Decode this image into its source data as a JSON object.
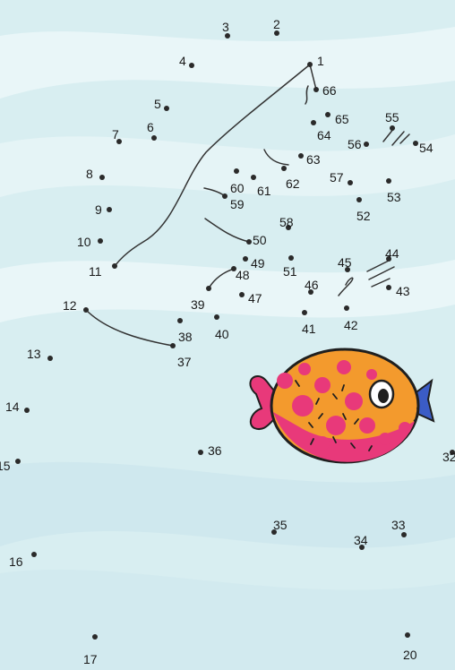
{
  "puzzle": {
    "colors": {
      "water_light": "#e6f4f6",
      "water_mid": "#cfe8ed",
      "water_band": "#bfe0e7",
      "line": "#333333",
      "fish_orange": "#f39a2d",
      "fish_pink": "#e8397a",
      "fish_outline": "#1f1f1f",
      "fish_tail_blue": "#3b5cc6"
    },
    "dots": [
      {
        "n": "1"
      },
      {
        "n": "2"
      },
      {
        "n": "3"
      },
      {
        "n": "4"
      },
      {
        "n": "5"
      },
      {
        "n": "6"
      },
      {
        "n": "7"
      },
      {
        "n": "8"
      },
      {
        "n": "9"
      },
      {
        "n": "10"
      },
      {
        "n": "11"
      },
      {
        "n": "12"
      },
      {
        "n": "13"
      },
      {
        "n": "14"
      },
      {
        "n": "15"
      },
      {
        "n": "16"
      },
      {
        "n": "17"
      },
      {
        "n": "20"
      },
      {
        "n": "32"
      },
      {
        "n": "33"
      },
      {
        "n": "34"
      },
      {
        "n": "35"
      },
      {
        "n": "36"
      },
      {
        "n": "37"
      },
      {
        "n": "38"
      },
      {
        "n": "39"
      },
      {
        "n": "40"
      },
      {
        "n": "41"
      },
      {
        "n": "42"
      },
      {
        "n": "43"
      },
      {
        "n": "44"
      },
      {
        "n": "45"
      },
      {
        "n": "46"
      },
      {
        "n": "47"
      },
      {
        "n": "48"
      },
      {
        "n": "49"
      },
      {
        "n": "50"
      },
      {
        "n": "51"
      },
      {
        "n": "52"
      },
      {
        "n": "53"
      },
      {
        "n": "54"
      },
      {
        "n": "55"
      },
      {
        "n": "56"
      },
      {
        "n": "57"
      },
      {
        "n": "58"
      },
      {
        "n": "59"
      },
      {
        "n": "60"
      },
      {
        "n": "61"
      },
      {
        "n": "62"
      },
      {
        "n": "63"
      },
      {
        "n": "64"
      },
      {
        "n": "65"
      },
      {
        "n": "66"
      }
    ]
  }
}
